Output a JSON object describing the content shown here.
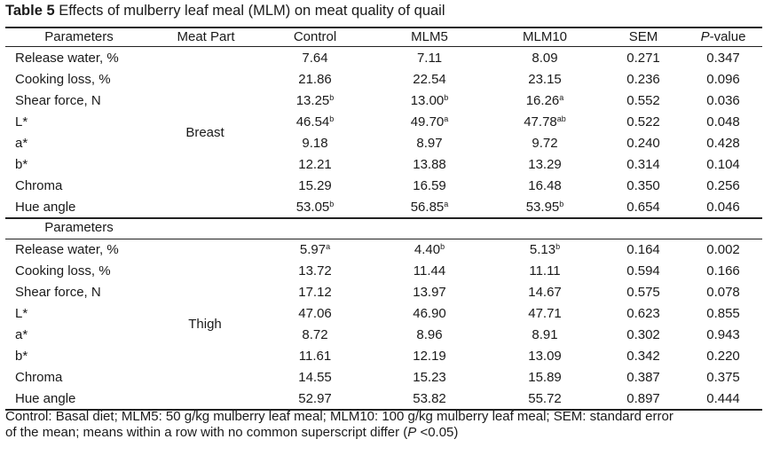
{
  "title": {
    "label": "Table 5",
    "text": " Effects of mulberry leaf meal (MLM) on meat quality of quail"
  },
  "header": {
    "parameters": "Parameters",
    "meat_part": "Meat Part",
    "control": "Control",
    "mlm5": "MLM5",
    "mlm10": "MLM10",
    "sem": "SEM",
    "p_italic": "P",
    "p_rest": "-value"
  },
  "breast": {
    "part": "Breast",
    "rows": [
      {
        "param": "Release water, %",
        "control": "7.64",
        "control_sup": "",
        "mlm5": "7.11",
        "mlm5_sup": "",
        "mlm10": "8.09",
        "mlm10_sup": "",
        "sem": "0.271",
        "p": "0.347"
      },
      {
        "param": "Cooking loss, %",
        "control": "21.86",
        "control_sup": "",
        "mlm5": "22.54",
        "mlm5_sup": "",
        "mlm10": "23.15",
        "mlm10_sup": "",
        "sem": "0.236",
        "p": "0.096"
      },
      {
        "param": "Shear force, N",
        "control": "13.25",
        "control_sup": "b",
        "mlm5": "13.00",
        "mlm5_sup": "b",
        "mlm10": "16.26",
        "mlm10_sup": "a",
        "sem": "0.552",
        "p": "0.036"
      },
      {
        "param": "L*",
        "control": "46.54",
        "control_sup": "b",
        "mlm5": "49.70",
        "mlm5_sup": "a",
        "mlm10": "47.78",
        "mlm10_sup": "ab",
        "sem": "0.522",
        "p": "0.048"
      },
      {
        "param": "a*",
        "control": "9.18",
        "control_sup": "",
        "mlm5": "8.97",
        "mlm5_sup": "",
        "mlm10": "9.72",
        "mlm10_sup": "",
        "sem": "0.240",
        "p": "0.428"
      },
      {
        "param": "b*",
        "control": "12.21",
        "control_sup": "",
        "mlm5": "13.88",
        "mlm5_sup": "",
        "mlm10": "13.29",
        "mlm10_sup": "",
        "sem": "0.314",
        "p": "0.104"
      },
      {
        "param": "Chroma",
        "control": "15.29",
        "control_sup": "",
        "mlm5": "16.59",
        "mlm5_sup": "",
        "mlm10": "16.48",
        "mlm10_sup": "",
        "sem": "0.350",
        "p": "0.256"
      },
      {
        "param": "Hue angle",
        "control": "53.05",
        "control_sup": "b",
        "mlm5": "56.85",
        "mlm5_sup": "a",
        "mlm10": "53.95",
        "mlm10_sup": "b",
        "sem": "0.654",
        "p": "0.046"
      }
    ]
  },
  "thigh_header": "Parameters",
  "thigh": {
    "part": "Thigh",
    "rows": [
      {
        "param": "Release water, %",
        "control": "5.97",
        "control_sup": "a",
        "mlm5": "4.40",
        "mlm5_sup": "b",
        "mlm10": "5.13",
        "mlm10_sup": "b",
        "sem": "0.164",
        "p": "0.002"
      },
      {
        "param": "Cooking loss, %",
        "control": "13.72",
        "control_sup": "",
        "mlm5": "11.44",
        "mlm5_sup": "",
        "mlm10": "11.11",
        "mlm10_sup": "",
        "sem": "0.594",
        "p": "0.166"
      },
      {
        "param": "Shear force, N",
        "control": "17.12",
        "control_sup": "",
        "mlm5": "13.97",
        "mlm5_sup": "",
        "mlm10": "14.67",
        "mlm10_sup": "",
        "sem": "0.575",
        "p": "0.078"
      },
      {
        "param": "L*",
        "control": "47.06",
        "control_sup": "",
        "mlm5": "46.90",
        "mlm5_sup": "",
        "mlm10": "47.71",
        "mlm10_sup": "",
        "sem": "0.623",
        "p": "0.855"
      },
      {
        "param": "a*",
        "control": "8.72",
        "control_sup": "",
        "mlm5": "8.96",
        "mlm5_sup": "",
        "mlm10": "8.91",
        "mlm10_sup": "",
        "sem": "0.302",
        "p": "0.943"
      },
      {
        "param": "b*",
        "control": "11.61",
        "control_sup": "",
        "mlm5": "12.19",
        "mlm5_sup": "",
        "mlm10": "13.09",
        "mlm10_sup": "",
        "sem": "0.342",
        "p": "0.220"
      },
      {
        "param": "Chroma",
        "control": "14.55",
        "control_sup": "",
        "mlm5": "15.23",
        "mlm5_sup": "",
        "mlm10": "15.89",
        "mlm10_sup": "",
        "sem": "0.387",
        "p": "0.375"
      },
      {
        "param": "Hue angle",
        "control": "52.97",
        "control_sup": "",
        "mlm5": "53.82",
        "mlm5_sup": "",
        "mlm10": "55.72",
        "mlm10_sup": "",
        "sem": "0.897",
        "p": "0.444"
      }
    ]
  },
  "footnote": {
    "line1": "Control: Basal diet; MLM5: 50 g/kg mulberry leaf meal; MLM10: 100 g/kg mulberry leaf meal; SEM: standard error",
    "line2_a": "of the mean; means within a row with no common superscript differ (",
    "line2_p": "P",
    "line2_b": " <0.05)"
  }
}
